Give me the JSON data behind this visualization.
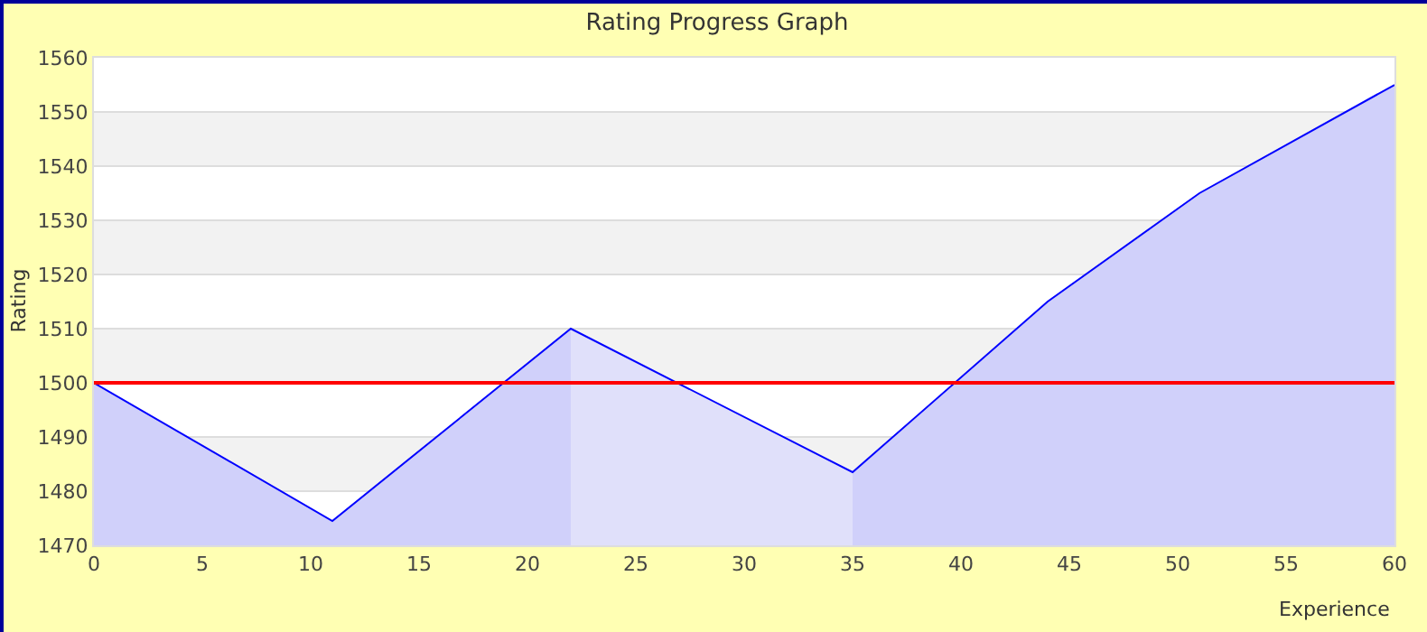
{
  "chart_data": {
    "type": "area",
    "title": "Rating Progress Graph",
    "xlabel": "Experience",
    "ylabel": "Rating",
    "series": [
      {
        "color": "#d0d0fa",
        "x": [
          0,
          11,
          22
        ],
        "values": [
          1500,
          1474.5,
          1510
        ]
      },
      {
        "color": "#e0e0fa",
        "x": [
          22,
          35
        ],
        "values": [
          1510,
          1483.5
        ]
      },
      {
        "color": "#d0d0fa",
        "x": [
          35,
          44,
          51,
          60
        ],
        "values": [
          1483.5,
          1515,
          1535,
          1555
        ]
      },
      {
        "type": "line",
        "color": "#0000ff",
        "x": [
          0,
          11,
          22,
          35,
          44,
          51,
          60
        ],
        "values": [
          1500,
          1474.5,
          1510,
          1483.5,
          1515,
          1535,
          1555
        ]
      }
    ],
    "xlim": [
      0,
      60
    ],
    "xticks": [
      0,
      5,
      10,
      15,
      20,
      25,
      30,
      35,
      40,
      45,
      50,
      55,
      60
    ],
    "ylim": [
      1470,
      1560
    ],
    "yticks": [
      1470,
      1480,
      1490,
      1500,
      1510,
      1520,
      1530,
      1540,
      1550,
      1560
    ],
    "ref_lines": [
      {
        "axis": "y",
        "value": 1500,
        "color": "#ff0000"
      }
    ],
    "grid": "y"
  }
}
